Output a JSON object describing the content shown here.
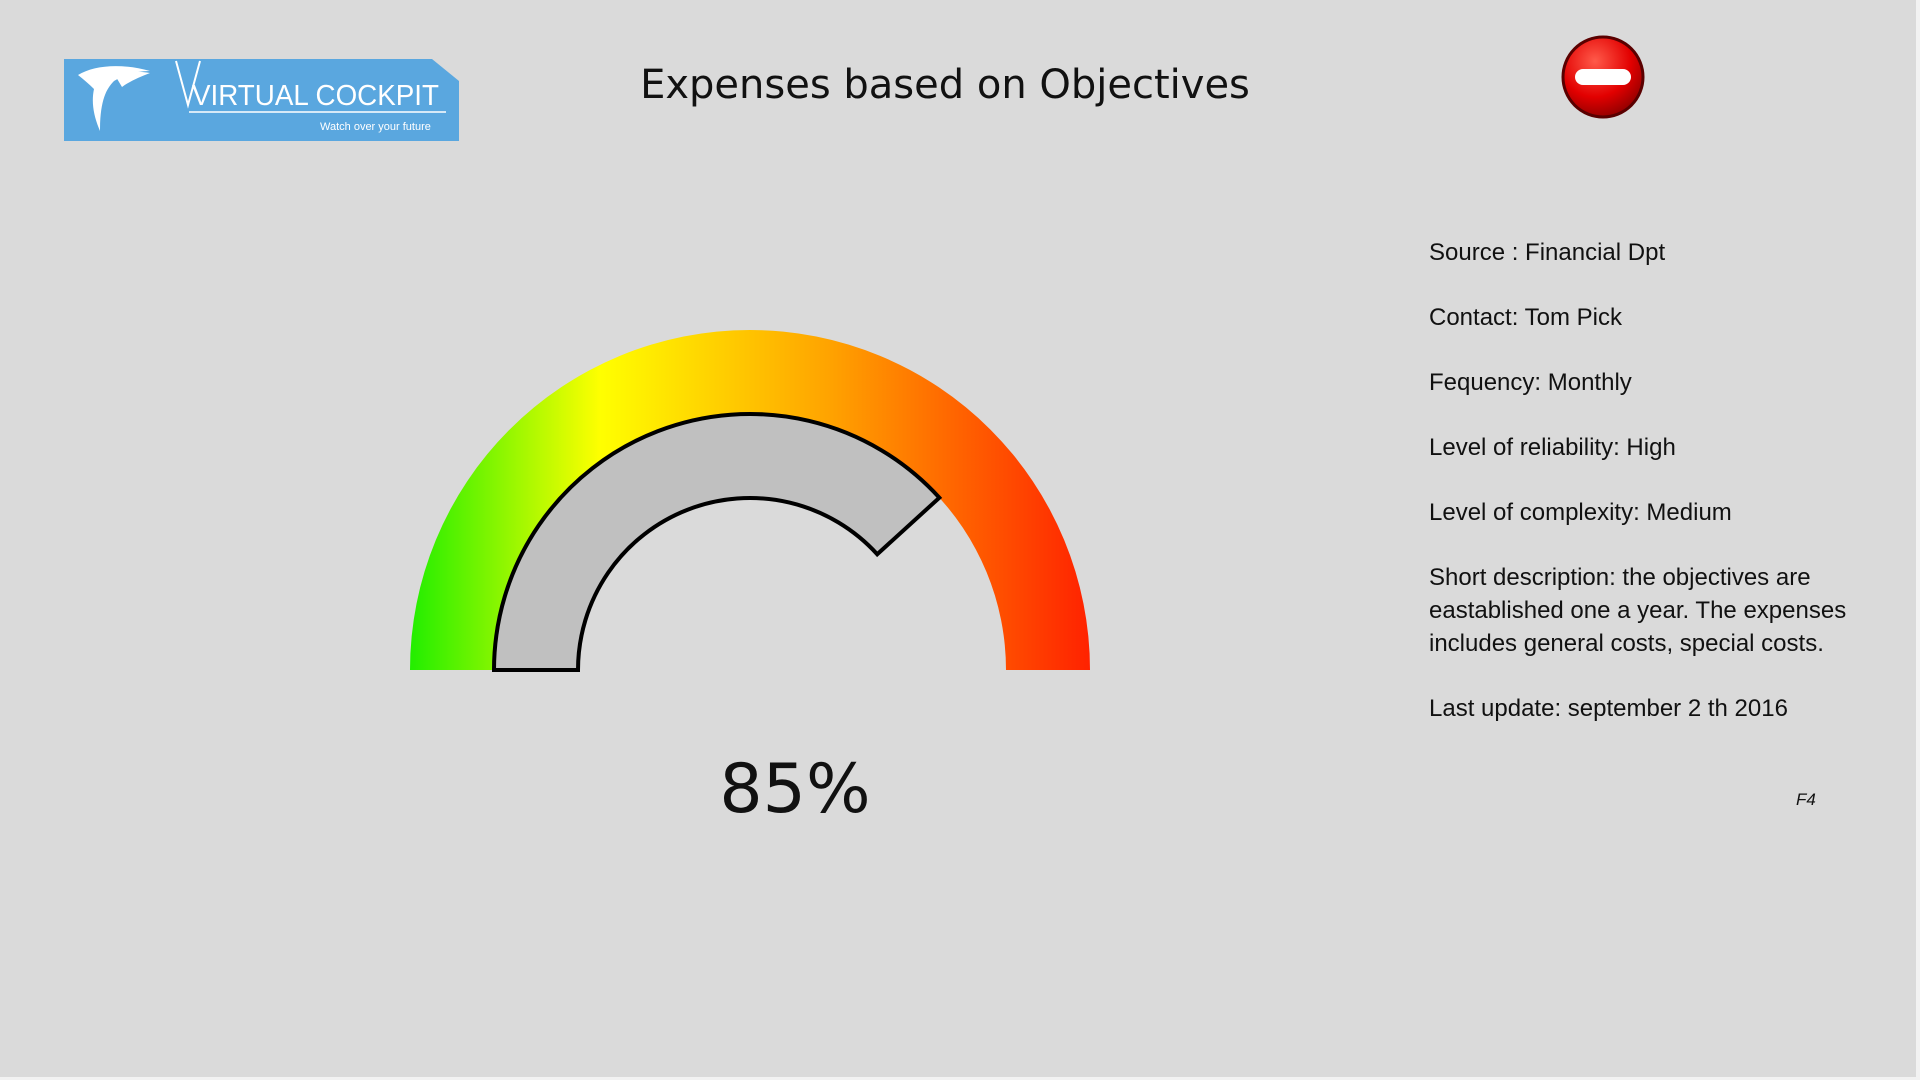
{
  "header": {
    "title": "Expenses based on Objectives",
    "status_icon": "no-entry-icon",
    "status_color": "#e20000"
  },
  "logo": {
    "name": "VIRTUAL COCKPIT",
    "tagline": "Watch over your future",
    "icon": "eagle-icon",
    "color": "#5aa7df"
  },
  "info": {
    "source": "Source : Financial Dpt",
    "contact": "Contact: Tom Pick",
    "frequency": "Fequency: Monthly",
    "reliability": "Level of reliability: High",
    "complexity": "Level of complexity: Medium",
    "description": "Short description:  the objectives are eastablished one a year. The expenses includes general costs, special costs.",
    "last_update": "Last update:  september 2 th 2016"
  },
  "slide_code": "F4",
  "chart_data": {
    "type": "gauge",
    "value": 85,
    "value_label": "85%",
    "min": 0,
    "max": 100,
    "color_scale": [
      "#22ee00",
      "#ffff00",
      "#ff9900",
      "#ff2200"
    ],
    "fill_color": "#c0c0c0"
  }
}
